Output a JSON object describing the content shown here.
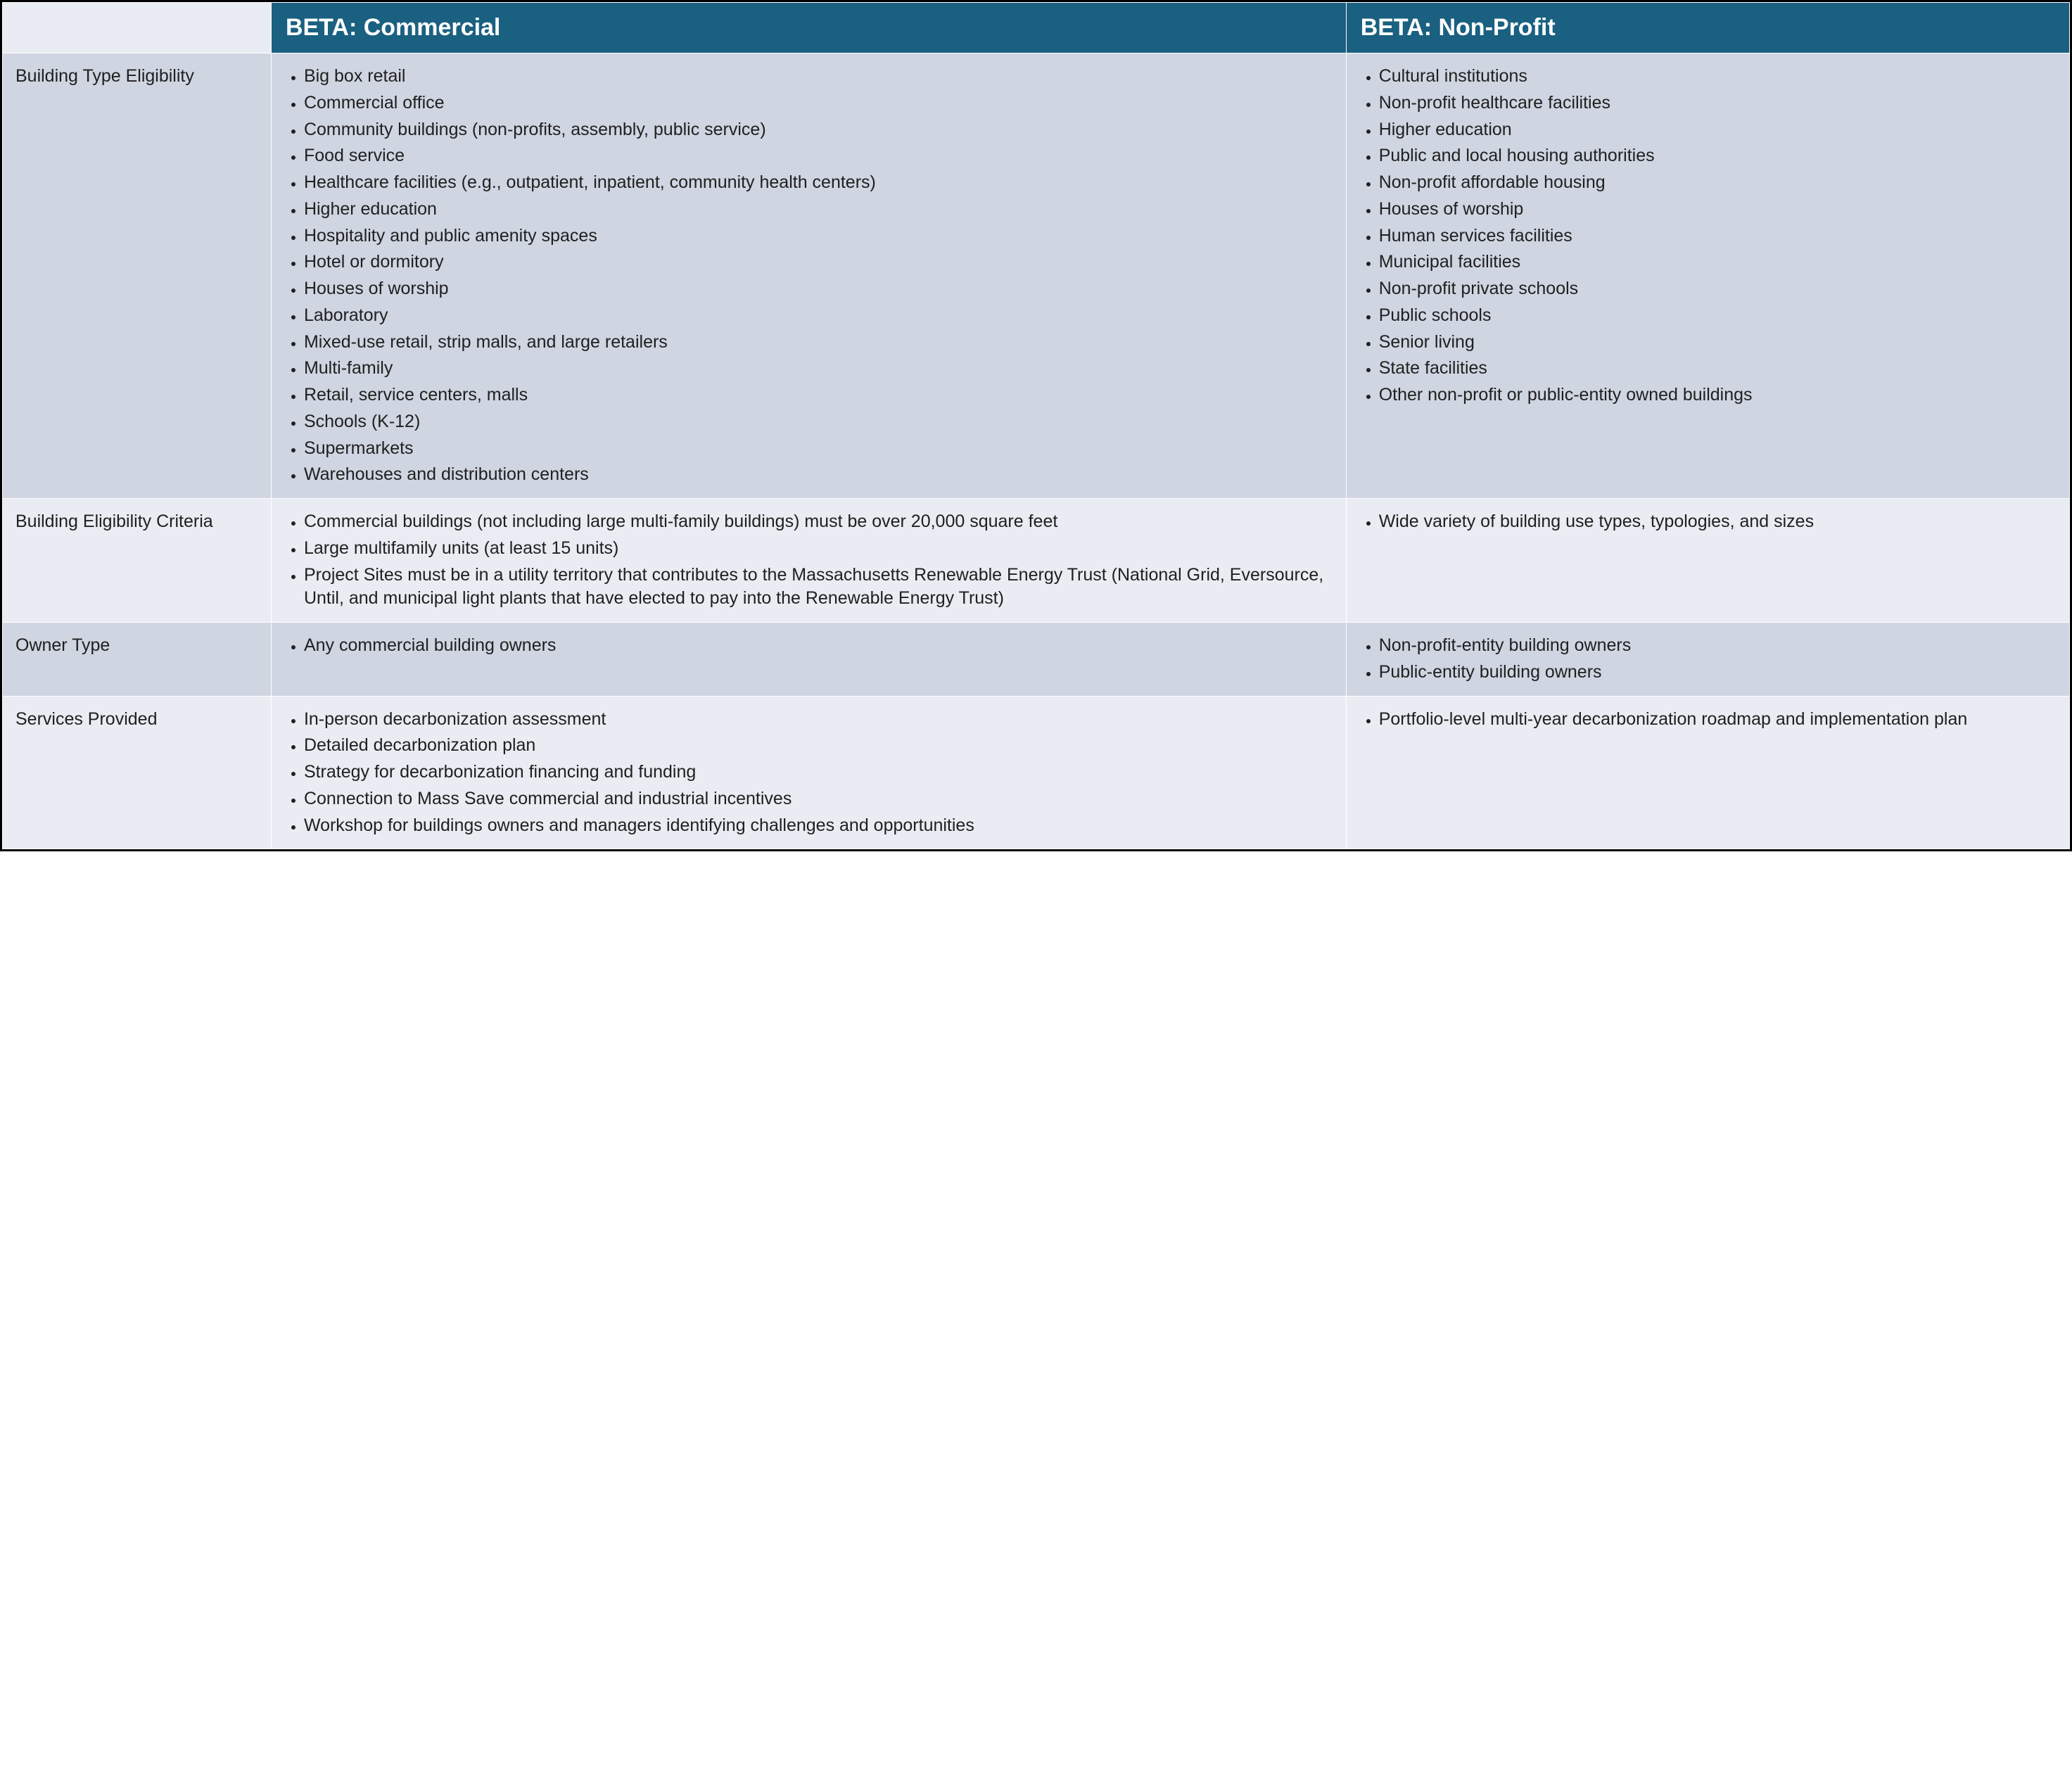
{
  "colors": {
    "header_bg": "#1a6080",
    "header_text": "#ffffff",
    "band_a": "#cfd5e1",
    "band_b": "#e9ecf2",
    "body_text": "#202020",
    "border": "#000000",
    "cell_border": "#ffffff"
  },
  "typography": {
    "header_fontsize": 34,
    "header_fontweight": 700,
    "body_fontsize": 25,
    "rowlabel_fontsize": 25
  },
  "columns": {
    "c0_label": "",
    "c1_label": "BETA: Commercial",
    "c2_label": "BETA: Non-Profit"
  },
  "rows": [
    {
      "label": "Building Type Eligibility",
      "band": "a",
      "commercial": [
        "Big box retail",
        "Commercial office",
        "Community buildings (non-profits, assembly, public service)",
        "Food service",
        "Healthcare facilities (e.g., outpatient, inpatient, community health centers)",
        "Higher education",
        "Hospitality and public amenity spaces",
        "Hotel or dormitory",
        "Houses of worship",
        "Laboratory",
        "Mixed-use retail, strip malls, and large retailers",
        "Multi-family",
        "Retail, service centers, malls",
        "Schools (K-12)",
        "Supermarkets",
        "Warehouses and distribution centers"
      ],
      "nonprofit": [
        "Cultural institutions",
        "Non-profit healthcare facilities",
        "Higher education",
        "Public and local housing authorities",
        "Non-profit affordable housing",
        "Houses of worship",
        "Human services facilities",
        "Municipal facilities",
        "Non-profit private schools",
        "Public schools",
        "Senior living",
        "State facilities",
        "Other non-profit or public-entity owned buildings"
      ]
    },
    {
      "label": "Building Eligibility Criteria",
      "band": "b",
      "commercial": [
        "Commercial buildings (not including large multi-family buildings) must be over 20,000 square feet",
        "Large multifamily units (at least 15 units)",
        "Project Sites must be in a utility territory that contributes to the Massachusetts Renewable Energy Trust (National Grid, Eversource, Until, and municipal light plants that have elected to pay into the Renewable Energy Trust)"
      ],
      "nonprofit": [
        "Wide variety of building use types, typologies, and sizes"
      ]
    },
    {
      "label": "Owner Type",
      "band": "a",
      "commercial": [
        "Any commercial building owners"
      ],
      "nonprofit": [
        "Non-profit-entity building owners",
        "Public-entity building owners"
      ]
    },
    {
      "label": "Services Provided",
      "band": "b",
      "commercial": [
        "In-person decarbonization assessment",
        "Detailed decarbonization plan",
        "Strategy for decarbonization financing and funding",
        "Connection to Mass Save commercial and industrial incentives",
        "Workshop for buildings owners and managers identifying challenges and opportunities"
      ],
      "nonprofit": [
        "Portfolio-level multi-year decarbonization roadmap and implementation plan"
      ]
    }
  ]
}
